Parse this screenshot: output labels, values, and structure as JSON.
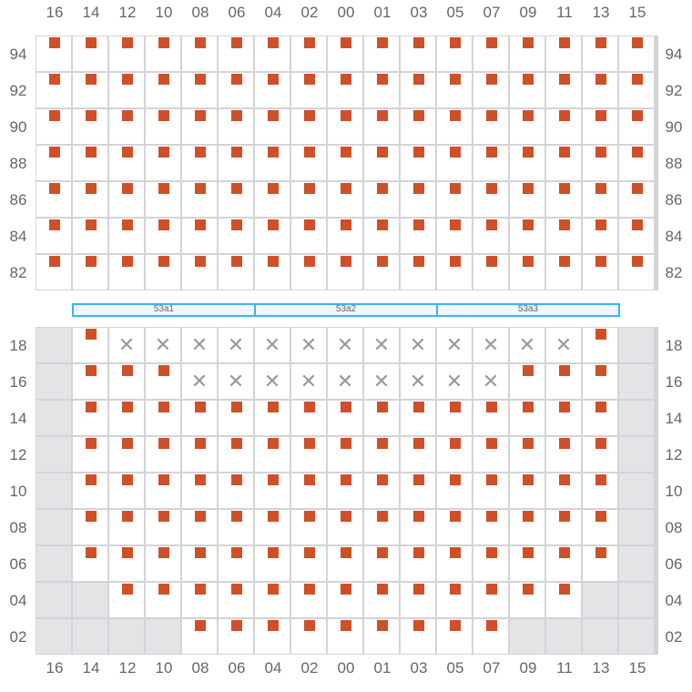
{
  "columns": [
    "16",
    "14",
    "12",
    "10",
    "08",
    "06",
    "04",
    "02",
    "00",
    "01",
    "03",
    "05",
    "07",
    "09",
    "11",
    "13",
    "15"
  ],
  "colors": {
    "seat": "#cf5028",
    "unavailable": "#999999",
    "blocked": "#e4e4e7",
    "section_border": "#38b6f0"
  },
  "top_block": {
    "rows": [
      {
        "label": "94",
        "cells": "sssssssssssssssss"
      },
      {
        "label": "92",
        "cells": "sssssssssssssssss"
      },
      {
        "label": "90",
        "cells": "sssssssssssssssss"
      },
      {
        "label": "88",
        "cells": "sssssssssssssssss"
      },
      {
        "label": "86",
        "cells": "sssssssssssssssss"
      },
      {
        "label": "84",
        "cells": "sssssssssssssssss"
      },
      {
        "label": "82",
        "cells": "sssssssssssssssss"
      }
    ]
  },
  "sections": [
    {
      "label": "53a1"
    },
    {
      "label": "53a2"
    },
    {
      "label": "53a3"
    }
  ],
  "bottom_block": {
    "rows": [
      {
        "label": "18",
        "cells": "gsxxxxxxxxxxxxxsg"
      },
      {
        "label": "16",
        "cells": "gsssxxxxxxxxxsssg"
      },
      {
        "label": "14",
        "cells": "gsssssssssssssssg"
      },
      {
        "label": "12",
        "cells": "gsssssssssssssssg"
      },
      {
        "label": "10",
        "cells": "gsssssssssssssssg"
      },
      {
        "label": "08",
        "cells": "gsssssssssssssssg"
      },
      {
        "label": "06",
        "cells": "gsssssssssssssssg"
      },
      {
        "label": "04",
        "cells": "ggsssssssssssssgg"
      },
      {
        "label": "02",
        "cells": "ggggsssssssssgggg"
      }
    ]
  },
  "unavailable_glyph": "✕"
}
